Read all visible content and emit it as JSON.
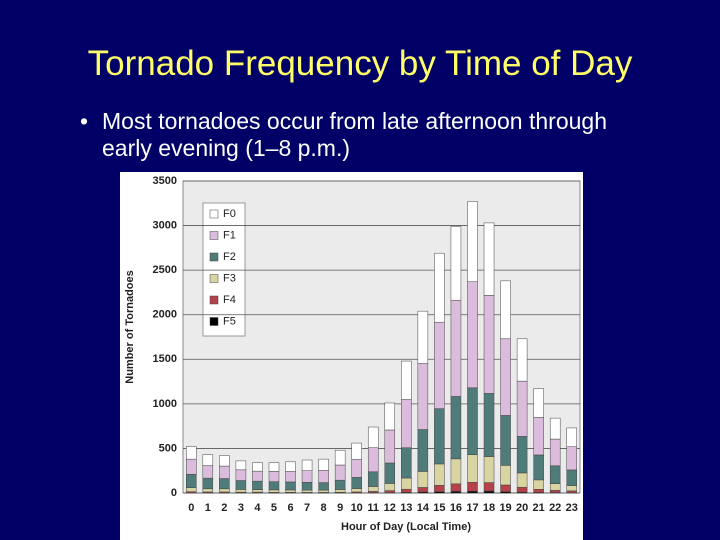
{
  "slide": {
    "title": "Tornado Frequency by Time of Day",
    "bullet": "Most tornadoes occur from late afternoon through early evening (1–8 p.m.)"
  },
  "chart_data": {
    "type": "stacked-bar",
    "x_label": "Hour of Day (Local Time)",
    "y_label": "Number of Tornadoes",
    "categories": [
      "0",
      "1",
      "2",
      "3",
      "4",
      "5",
      "6",
      "7",
      "8",
      "9",
      "10",
      "11",
      "12",
      "13",
      "14",
      "15",
      "16",
      "17",
      "18",
      "19",
      "20",
      "21",
      "22",
      "23"
    ],
    "series": [
      {
        "name": "F0",
        "color": "#ffffff",
        "values": [
          140,
          123,
          118,
          100,
          95,
          98,
          106,
          120,
          128,
          166,
          185,
          232,
          303,
          432,
          588,
          774,
          827,
          900,
          813,
          650,
          475,
          323,
          235,
          211
        ]
      },
      {
        "name": "F1",
        "color": "#dcbcdc",
        "values": [
          170,
          140,
          140,
          120,
          112,
          115,
          120,
          130,
          135,
          170,
          200,
          270,
          370,
          540,
          740,
          970,
          1080,
          1190,
          1100,
          860,
          620,
          420,
          300,
          260
        ]
      },
      {
        "name": "F2",
        "color": "#4f7b79",
        "values": [
          150,
          120,
          115,
          100,
          95,
          92,
          90,
          88,
          85,
          105,
          125,
          165,
          230,
          340,
          470,
          620,
          700,
          750,
          710,
          560,
          410,
          280,
          200,
          175
        ]
      },
      {
        "name": "F3",
        "color": "#d9d5a3",
        "values": [
          45,
          35,
          35,
          30,
          28,
          27,
          26,
          25,
          25,
          30,
          38,
          55,
          80,
          125,
          180,
          240,
          280,
          310,
          290,
          220,
          160,
          105,
          75,
          60
        ]
      },
      {
        "name": "F4",
        "color": "#b5424a",
        "values": [
          12,
          10,
          10,
          8,
          8,
          7,
          7,
          6,
          6,
          8,
          10,
          15,
          22,
          35,
          50,
          70,
          85,
          100,
          95,
          75,
          55,
          35,
          25,
          20
        ]
      },
      {
        "name": "F5",
        "color": "#000000",
        "values": [
          3,
          2,
          2,
          2,
          2,
          1,
          1,
          1,
          1,
          1,
          2,
          3,
          5,
          8,
          12,
          16,
          18,
          20,
          22,
          15,
          10,
          7,
          5,
          4
        ]
      }
    ],
    "ylim": [
      0,
      3500
    ],
    "yticks": [
      0,
      500,
      1000,
      1500,
      2000,
      2500,
      3000,
      3500
    ],
    "grid": true,
    "legend": "upper left"
  }
}
